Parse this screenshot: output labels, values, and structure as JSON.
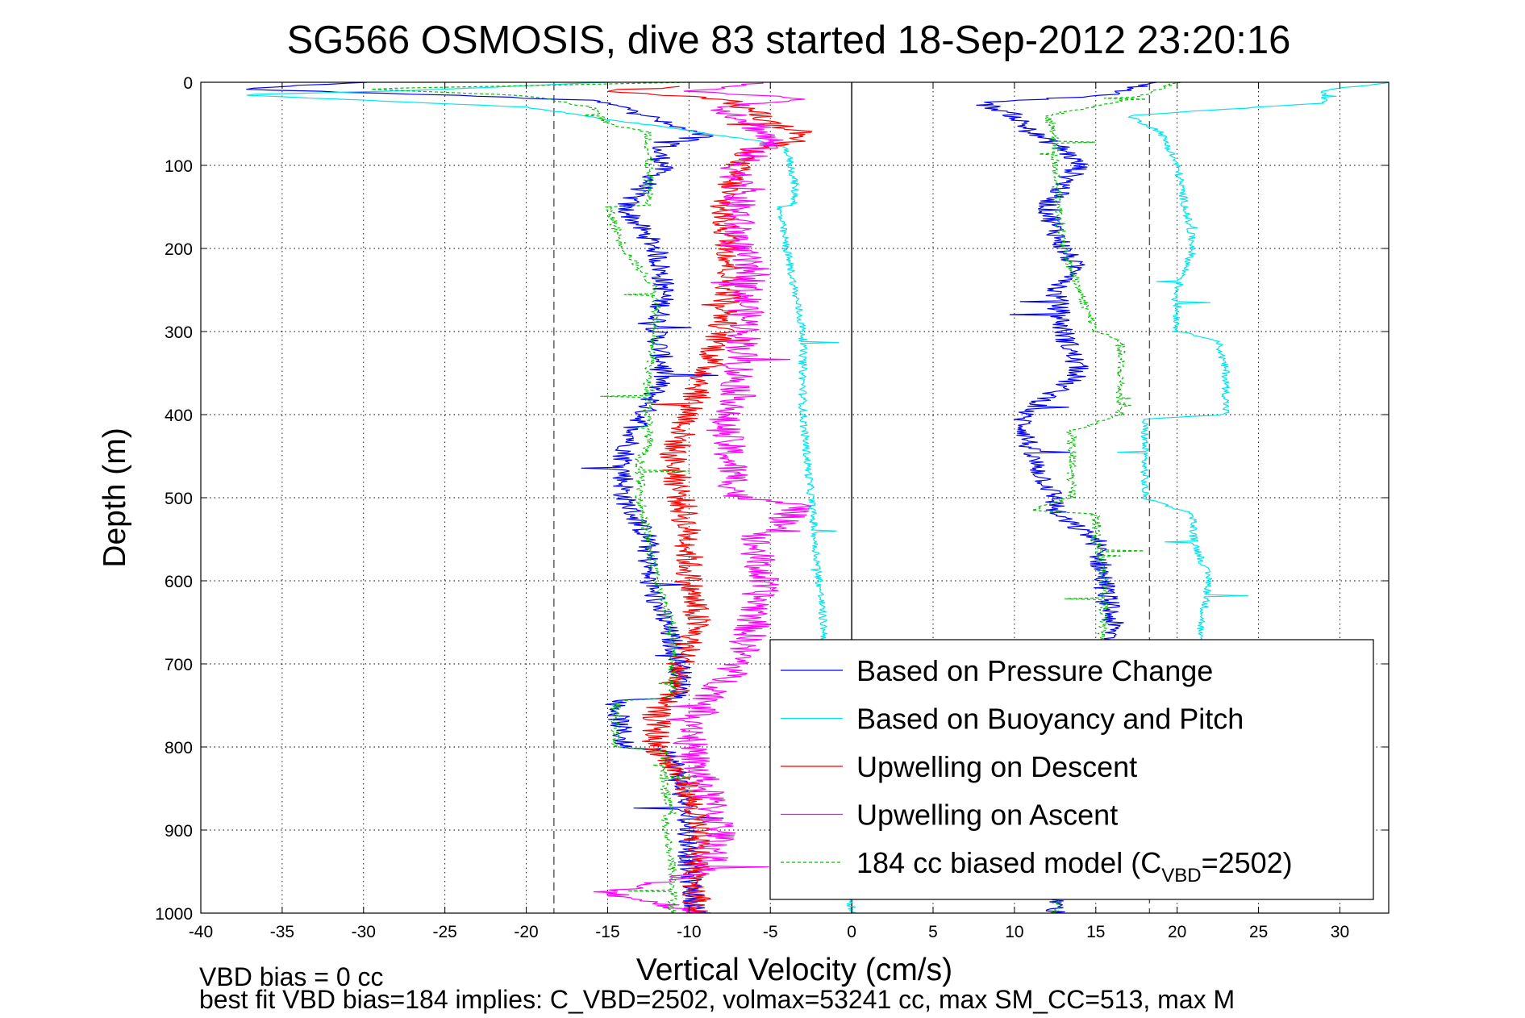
{
  "chart_data": {
    "type": "line",
    "title": "SG566 OSMOSIS, dive 83 started 18-Sep-2012 23:20:16",
    "xlabel": "Vertical Velocity (cm/s)",
    "ylabel": "Depth (m)",
    "xlim": [
      -40,
      33
    ],
    "ylim": [
      1000,
      0
    ],
    "y_reversed": true,
    "grid": true,
    "xticks": [
      -40,
      -35,
      -30,
      -25,
      -20,
      -15,
      -10,
      -5,
      0,
      5,
      10,
      15,
      20,
      25,
      30
    ],
    "yticks": [
      0,
      100,
      200,
      300,
      400,
      500,
      600,
      700,
      800,
      900,
      1000
    ],
    "legend_position": "bottom-right",
    "reference_lines": [
      {
        "x": -18.3,
        "style": "dashed",
        "color": "#555555"
      },
      {
        "x": 0,
        "style": "solid",
        "color": "#000000"
      },
      {
        "x": 18.3,
        "style": "dashed",
        "color": "#555555"
      }
    ],
    "series": [
      {
        "name": "Based on Pressure Change",
        "color": "#0000ff",
        "style": "solid",
        "noise": 0.7,
        "segments": [
          {
            "depth": [
              0,
              8,
              16,
              22,
              35,
              50,
              65,
              80,
              100,
              150,
              200,
              250,
              300,
              350,
              400,
              450,
              500,
              550,
              600,
              650,
              700,
              740,
              745,
              800,
              805,
              850,
              900,
              950,
              1000
            ],
            "value": [
              -30,
              -38,
              -24,
              -16,
              -13,
              -11.5,
              -9,
              -12,
              -11.5,
              -14,
              -12,
              -11.5,
              -12,
              -11.5,
              -12.8,
              -14,
              -14,
              -12.5,
              -12.5,
              -11.5,
              -10.5,
              -10.5,
              -14.5,
              -14,
              -11,
              -10.5,
              -10,
              -10,
              -9.5
            ]
          },
          {
            "depth": [
              0,
              15,
              25,
              40,
              60,
              80,
              100,
              150,
              200,
              230,
              250,
              300,
              350,
              395,
              400,
              450,
              500,
              520,
              550,
              600,
              650,
              700,
              800,
              900,
              1000
            ],
            "value": [
              18.5,
              16,
              8,
              10,
              11,
              13,
              14,
              12,
              13,
              14,
              12.5,
              13,
              14,
              11,
              10.5,
              11,
              12.5,
              12.5,
              15,
              15.5,
              16,
              16,
              15.5,
              13.5,
              12.5
            ]
          }
        ]
      },
      {
        "name": "Based on Buoyancy and Pitch",
        "color": "#00e5ee",
        "style": "solid",
        "noise": 0.25,
        "segments": [
          {
            "depth": [
              0,
              10,
              15,
              30,
              50,
              70,
              80,
              120,
              148,
              150,
              200,
              250,
              300,
              400,
              500,
              600,
              700,
              800,
              900,
              1000
            ],
            "value": [
              -15,
              -27,
              -38,
              -20,
              -13,
              -6,
              -4,
              -3.5,
              -3.5,
              -4.5,
              -4,
              -3.5,
              -3,
              -3,
              -2.5,
              -2,
              -1.5,
              -1,
              -0.5,
              0
            ]
          },
          {
            "depth": [
              0,
              10,
              25,
              40,
              60,
              100,
              150,
              200,
              250,
              300,
              310,
              350,
              400,
              405,
              450,
              500,
              520,
              550,
              600,
              650,
              700
            ],
            "value": [
              33,
              29,
              29,
              17,
              19,
              20,
              20.5,
              21,
              20,
              20,
              22.5,
              23,
              23,
              18,
              18,
              18,
              21,
              21,
              22,
              21.5,
              21
            ]
          }
        ]
      },
      {
        "name": "Upwelling on Descent",
        "color": "#ff0000",
        "style": "solid",
        "noise": 0.9,
        "segments": [
          {
            "depth": [
              5,
              10,
              20,
              35,
              50,
              60,
              70,
              80,
              100,
              150,
              200,
              250,
              300,
              350,
              400,
              450,
              500,
              550,
              600,
              650,
              700,
              740,
              750,
              800,
              850,
              900,
              950,
              1000
            ],
            "value": [
              -10,
              -15,
              -8,
              -6,
              -5,
              -3,
              -3.5,
              -6,
              -7,
              -8,
              -7.5,
              -7.5,
              -8,
              -9,
              -10,
              -11,
              -10.5,
              -10,
              -10,
              -9.5,
              -10.5,
              -11,
              -12,
              -12,
              -10,
              -9.5,
              -9.5,
              -9.5
            ]
          }
        ]
      },
      {
        "name": "Upwelling on Ascent",
        "color": "#ff00ff",
        "style": "solid",
        "noise": 1.1,
        "segments": [
          {
            "depth": [
              0,
              10,
              20,
              30,
              50,
              70,
              100,
              150,
              200,
              230,
              250,
              300,
              350,
              390,
              400,
              450,
              500,
              510,
              550,
              600,
              650,
              700,
              750,
              800,
              850,
              900,
              950,
              975,
              1000
            ],
            "value": [
              -5,
              -10,
              -3,
              -8,
              -6,
              -5,
              -7,
              -7,
              -7,
              -6,
              -6.5,
              -6.5,
              -7,
              -7,
              -8,
              -7.5,
              -7,
              -3,
              -6,
              -5.5,
              -6,
              -7,
              -9,
              -10,
              -9,
              -8,
              -9,
              -15,
              -9
            ]
          }
        ]
      },
      {
        "name": "184 cc biased model (C_VBD=2502)",
        "color": "#00c000",
        "style": "dashed",
        "noise": 0.3,
        "segments": [
          {
            "depth": [
              0,
              8,
              16,
              30,
              50,
              60,
              80,
              100,
              148,
              150,
              200,
              250,
              300,
              350,
              400,
              420,
              440,
              450,
              500,
              550,
              600,
              650,
              700,
              740,
              745,
              800,
              805,
              850,
              880,
              885,
              950,
              1000
            ],
            "value": [
              -10,
              -30,
              -20,
              -16,
              -15,
              -12.5,
              -12.5,
              -12.5,
              -12.5,
              -15,
              -14,
              -12,
              -12,
              -12.5,
              -12.5,
              -12.5,
              -12.5,
              -13,
              -13,
              -12.5,
              -12,
              -11,
              -11,
              -11,
              -14.5,
              -14.5,
              -11.5,
              -11.5,
              -11,
              -11.5,
              -11,
              -11
            ]
          },
          {
            "depth": [
              0,
              15,
              25,
              40,
              60,
              100,
              200,
              300,
              310,
              350,
              400,
              420,
              450,
              500,
              515,
              520,
              550,
              600,
              650,
              700,
              800,
              900,
              1000
            ],
            "value": [
              20,
              18,
              16,
              12,
              12.5,
              12.5,
              13,
              15,
              16.5,
              16.5,
              16.5,
              13.5,
              13.5,
              13.5,
              11,
              15,
              15,
              15.5,
              15.5,
              15,
              14.5,
              13.5,
              12.5
            ]
          }
        ]
      }
    ],
    "footer_lines": [
      "VBD bias = 0 cc",
      "best fit VBD bias=184 implies: C_VBD=2502, volmax=53241 cc, max SM_CC=513, max M"
    ]
  }
}
